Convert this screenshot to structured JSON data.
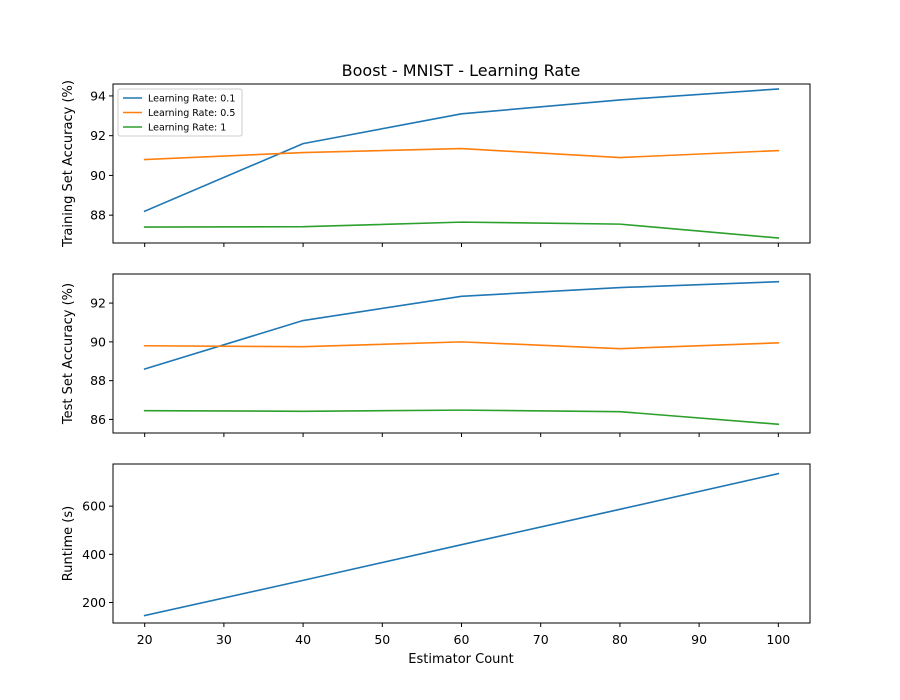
{
  "chart_data": {
    "type": "line",
    "title": "Boost - MNIST - Learning Rate",
    "xlabel": "Estimator Count",
    "x": [
      20,
      40,
      60,
      80,
      100
    ],
    "xticks": [
      20,
      30,
      40,
      50,
      60,
      70,
      80,
      90,
      100
    ],
    "xlim": [
      16,
      104
    ],
    "colors": {
      "lr_0.1": "#1f77b4",
      "lr_0.5": "#ff7f0e",
      "lr_1": "#2ca02c"
    },
    "legend": {
      "placement": "top-left",
      "entries": [
        "Learning Rate: 0.1",
        "Learning Rate: 0.5",
        "Learning Rate: 1"
      ]
    },
    "subplots": [
      {
        "ylabel": "Training Set Accuracy (%)",
        "ylim": [
          86.6,
          94.6
        ],
        "yticks": [
          88,
          90,
          92,
          94
        ],
        "series": [
          {
            "name": "Learning Rate: 0.1",
            "color": "#1f77b4",
            "values": [
              88.2,
              91.6,
              93.1,
              93.8,
              94.35
            ]
          },
          {
            "name": "Learning Rate: 0.5",
            "color": "#ff7f0e",
            "values": [
              90.8,
              91.15,
              91.35,
              90.9,
              91.25
            ]
          },
          {
            "name": "Learning Rate: 1",
            "color": "#2ca02c",
            "values": [
              87.4,
              87.42,
              87.65,
              87.55,
              86.85
            ]
          }
        ]
      },
      {
        "ylabel": "Test Set Accuracy (%)",
        "ylim": [
          85.3,
          93.5
        ],
        "yticks": [
          86,
          88,
          90,
          92
        ],
        "series": [
          {
            "name": "Learning Rate: 0.1",
            "color": "#1f77b4",
            "values": [
              88.6,
              91.1,
              92.35,
              92.8,
              93.1
            ]
          },
          {
            "name": "Learning Rate: 0.5",
            "color": "#ff7f0e",
            "values": [
              89.8,
              89.75,
              90.0,
              89.65,
              89.95
            ]
          },
          {
            "name": "Learning Rate: 1",
            "color": "#2ca02c",
            "values": [
              86.45,
              86.42,
              86.48,
              86.4,
              85.75
            ]
          }
        ]
      },
      {
        "ylabel": "Runtime (s)",
        "ylim": [
          115,
          775
        ],
        "yticks": [
          200,
          400,
          600
        ],
        "series": [
          {
            "name": "Learning Rate: 0.1",
            "color": "#1f77b4",
            "values": [
              146,
              292,
              440,
              587,
              735
            ]
          }
        ]
      }
    ]
  }
}
